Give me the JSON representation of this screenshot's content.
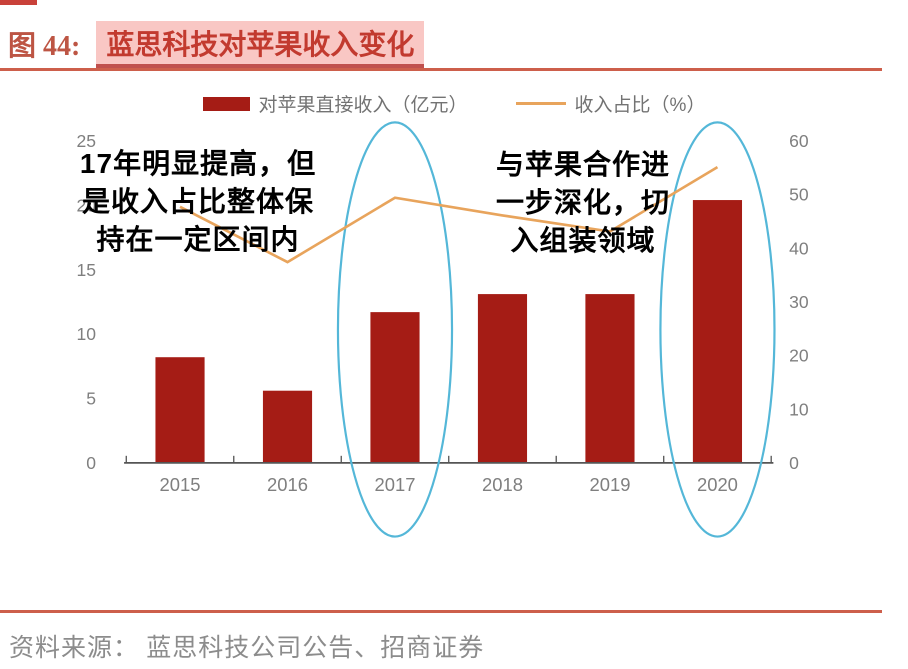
{
  "header": {
    "figure_label": "图 44:",
    "figure_title": "蓝思科技对苹果收入变化"
  },
  "legend": [
    {
      "label": "对苹果直接收入（亿元）",
      "type": "bar",
      "color": "#a51c15"
    },
    {
      "label": "收入占比（%）",
      "type": "line",
      "color": "#e8a45c"
    }
  ],
  "chart_data": {
    "type": "bar+line combo",
    "categories": [
      "2015",
      "2016",
      "2017",
      "2018",
      "2019",
      "2020"
    ],
    "series": [
      {
        "name": "对苹果直接收入（亿元）",
        "type": "bar",
        "axis": "left",
        "color": "#a51c15",
        "values": [
          8.2,
          5.6,
          11.7,
          13.1,
          13.1,
          20.4
        ]
      },
      {
        "name": "收入占比（%）",
        "type": "line",
        "axis": "right",
        "color": "#e8a45c",
        "values": [
          47.7,
          37.4,
          49.4,
          46.1,
          43.1,
          55.1
        ]
      }
    ],
    "left_axis": {
      "ticks": [
        0,
        5,
        10,
        15,
        20,
        25
      ],
      "range": [
        0,
        25
      ]
    },
    "right_axis": {
      "ticks": [
        0,
        10,
        20,
        30,
        40,
        50,
        60
      ],
      "range": [
        0,
        60
      ]
    },
    "grid": "off",
    "legend_position": "top-center",
    "annotations": [
      {
        "position": "upper-left",
        "text_lines": [
          "17年明显提高，但",
          "是收入占比整体保",
          "持在一定区间内"
        ]
      },
      {
        "position": "upper-right",
        "text_lines": [
          "与苹果合作进",
          "一步深化，切",
          "入组装领域"
        ]
      }
    ],
    "highlight_ellipses": [
      {
        "category": "2017",
        "color": "#54b7d8"
      },
      {
        "category": "2020",
        "color": "#54b7d8"
      }
    ]
  },
  "footer": {
    "source_text": "资料来源： 蓝思科技公司公告、招商证券"
  }
}
